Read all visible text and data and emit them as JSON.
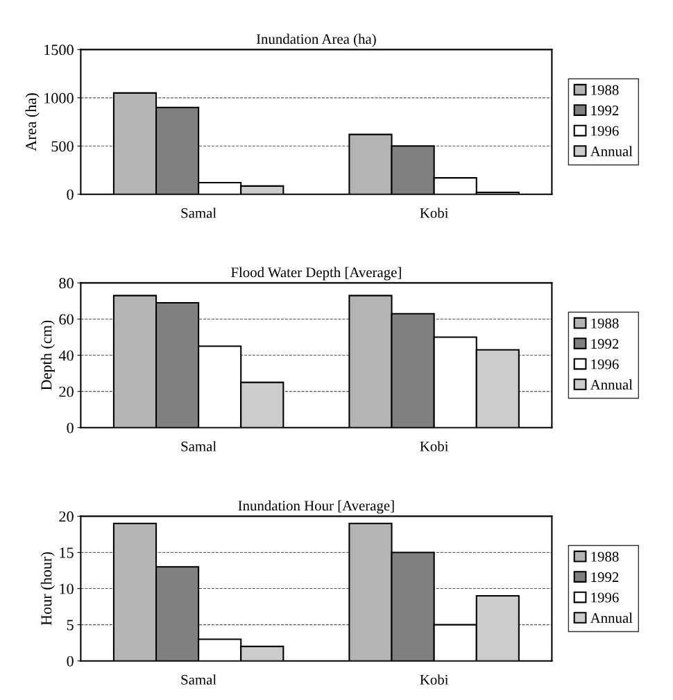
{
  "chart_data": [
    {
      "type": "bar",
      "title": "Inundation Area (ha)",
      "ylabel": "Area (ha)",
      "categories": [
        "Samal",
        "Kobi"
      ],
      "ylim": [
        0,
        1500
      ],
      "yticks": [
        0,
        500,
        1000,
        1500
      ],
      "grid": "y",
      "legend": "right",
      "series": [
        {
          "name": "1988",
          "color": "#b4b4b4",
          "values": [
            1050,
            620
          ]
        },
        {
          "name": "1992",
          "color": "#808080",
          "values": [
            900,
            500
          ]
        },
        {
          "name": "1996",
          "color": "#ffffff",
          "values": [
            120,
            170
          ]
        },
        {
          "name": "Annual",
          "color": "#cccccc",
          "values": [
            85,
            20
          ]
        }
      ]
    },
    {
      "type": "bar",
      "title": "Flood Water Depth [Average]",
      "ylabel": "Depth (cm)",
      "categories": [
        "Samal",
        "Kobi"
      ],
      "ylim": [
        0,
        80
      ],
      "yticks": [
        0,
        20,
        40,
        60,
        80
      ],
      "grid": "y",
      "legend": "right",
      "series": [
        {
          "name": "1988",
          "color": "#b4b4b4",
          "values": [
            73,
            73
          ]
        },
        {
          "name": "1992",
          "color": "#808080",
          "values": [
            69,
            63
          ]
        },
        {
          "name": "1996",
          "color": "#ffffff",
          "values": [
            45,
            50
          ]
        },
        {
          "name": "Annual",
          "color": "#cccccc",
          "values": [
            25,
            43
          ]
        }
      ]
    },
    {
      "type": "bar",
      "title": "Inundation Hour [Average]",
      "ylabel": "Hour (hour)",
      "categories": [
        "Samal",
        "Kobi"
      ],
      "ylim": [
        0,
        20
      ],
      "yticks": [
        0,
        5,
        10,
        15,
        20
      ],
      "grid": "y",
      "legend": "right",
      "series": [
        {
          "name": "1988",
          "color": "#b4b4b4",
          "values": [
            19,
            19
          ]
        },
        {
          "name": "1992",
          "color": "#808080",
          "values": [
            13,
            15
          ]
        },
        {
          "name": "1996",
          "color": "#ffffff",
          "values": [
            3,
            5
          ]
        },
        {
          "name": "Annual",
          "color": "#cccccc",
          "values": [
            2,
            9
          ]
        }
      ]
    }
  ]
}
